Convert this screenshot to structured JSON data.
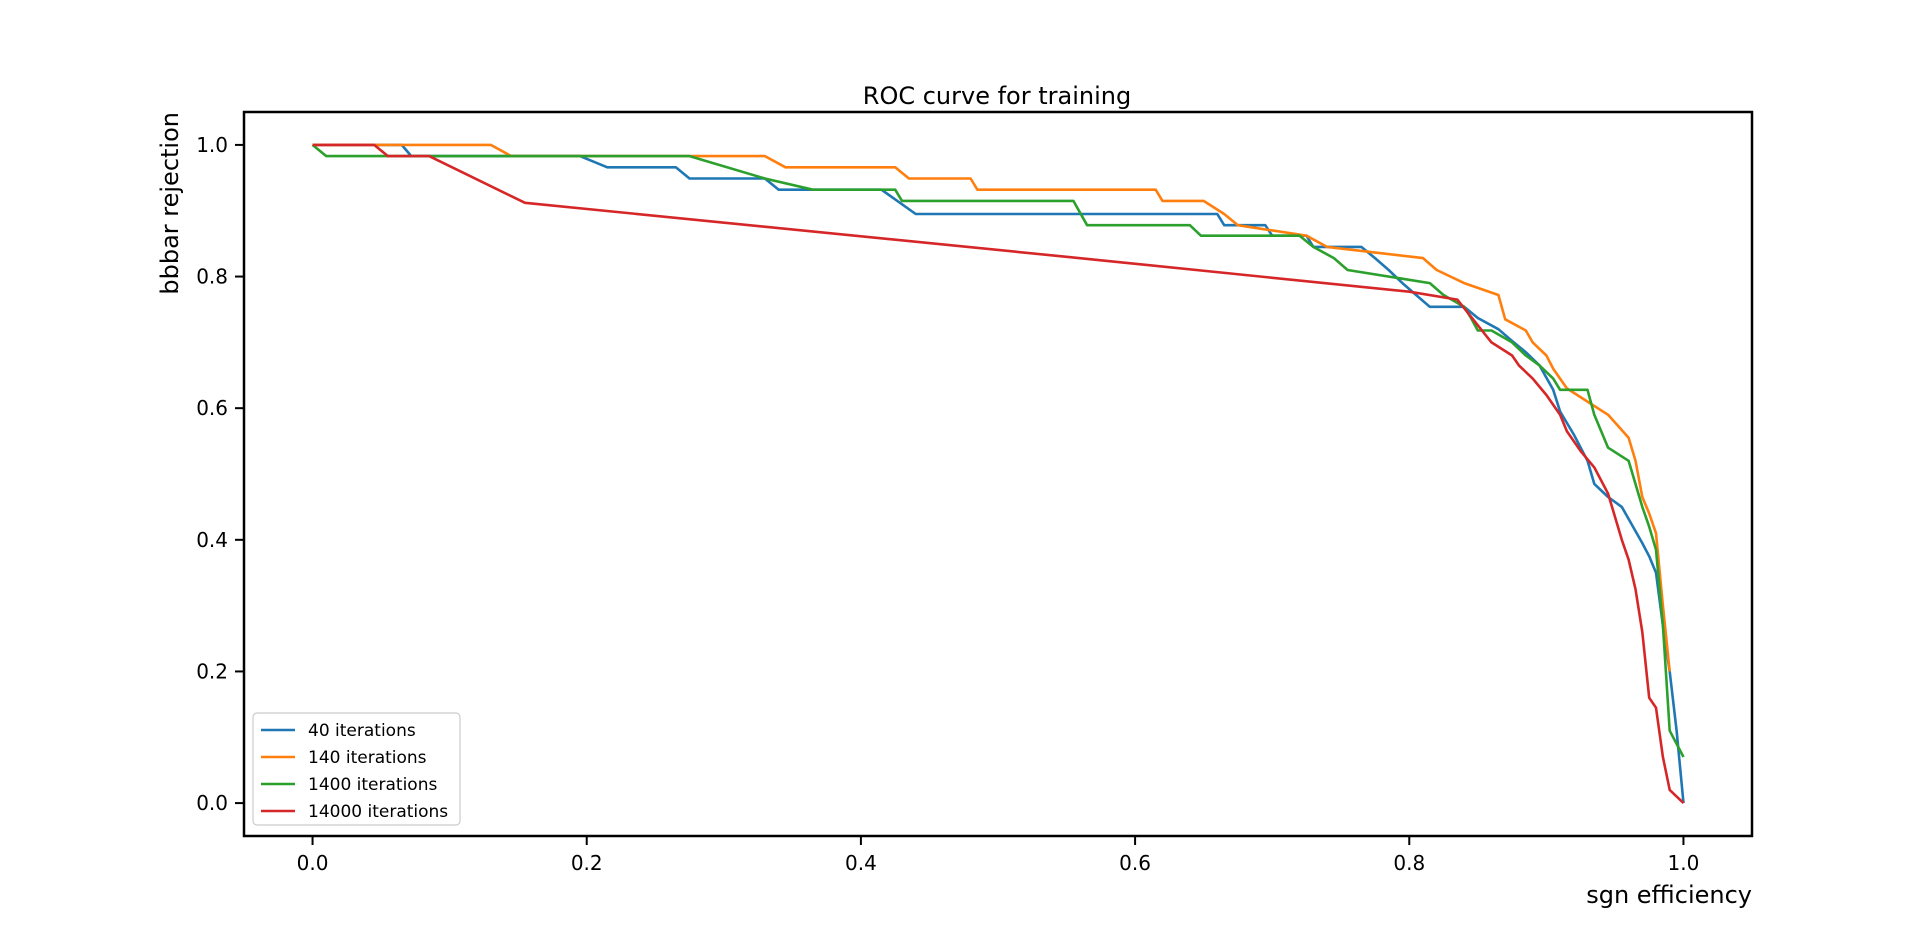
{
  "chart_data": {
    "type": "line",
    "title": "ROC curve for training",
    "xlabel": "sgn efficiency",
    "ylabel": "bbbar rejection",
    "xlim": [
      -0.05,
      1.05
    ],
    "ylim": [
      -0.05,
      1.05
    ],
    "xticks": [
      0.0,
      0.2,
      0.4,
      0.6,
      0.8,
      1.0
    ],
    "yticks": [
      0.0,
      0.2,
      0.4,
      0.6,
      0.8,
      1.0
    ],
    "xtick_labels": [
      "0.0",
      "0.2",
      "0.4",
      "0.6",
      "0.8",
      "1.0"
    ],
    "ytick_labels": [
      "0.0",
      "0.2",
      "0.4",
      "0.6",
      "0.8",
      "1.0"
    ],
    "grid": false,
    "legend_position": "lower-left",
    "series": [
      {
        "name": "40 iterations",
        "color": "#1f77b4",
        "x": [
          0.0,
          0.065,
          0.072,
          0.195,
          0.215,
          0.265,
          0.275,
          0.33,
          0.34,
          0.415,
          0.44,
          0.66,
          0.665,
          0.695,
          0.7,
          0.725,
          0.73,
          0.765,
          0.775,
          0.785,
          0.795,
          0.805,
          0.815,
          0.84,
          0.85,
          0.865,
          0.875,
          0.885,
          0.895,
          0.905,
          0.91,
          0.92,
          0.93,
          0.935,
          0.945,
          0.955,
          0.97,
          0.975,
          0.98,
          0.985,
          0.99,
          0.995,
          1.0
        ],
        "y": [
          1.0,
          1.0,
          0.983,
          0.983,
          0.966,
          0.966,
          0.949,
          0.949,
          0.932,
          0.932,
          0.895,
          0.895,
          0.878,
          0.878,
          0.862,
          0.862,
          0.845,
          0.845,
          0.828,
          0.81,
          0.79,
          0.772,
          0.754,
          0.754,
          0.737,
          0.72,
          0.702,
          0.685,
          0.665,
          0.628,
          0.595,
          0.56,
          0.52,
          0.485,
          0.465,
          0.45,
          0.395,
          0.375,
          0.35,
          0.27,
          0.2,
          0.11,
          0.0
        ]
      },
      {
        "name": "140 iterations",
        "color": "#ff7f0e",
        "x": [
          0.0,
          0.13,
          0.145,
          0.33,
          0.345,
          0.425,
          0.435,
          0.48,
          0.485,
          0.615,
          0.62,
          0.65,
          0.665,
          0.675,
          0.725,
          0.74,
          0.81,
          0.82,
          0.84,
          0.865,
          0.87,
          0.885,
          0.89,
          0.9,
          0.905,
          0.915,
          0.93,
          0.945,
          0.96,
          0.965,
          0.97,
          0.975,
          0.98,
          0.985,
          0.99
        ],
        "y": [
          1.0,
          1.0,
          0.983,
          0.983,
          0.966,
          0.966,
          0.949,
          0.949,
          0.932,
          0.932,
          0.915,
          0.915,
          0.895,
          0.878,
          0.862,
          0.845,
          0.828,
          0.81,
          0.79,
          0.772,
          0.735,
          0.718,
          0.7,
          0.68,
          0.66,
          0.63,
          0.61,
          0.59,
          0.555,
          0.52,
          0.465,
          0.44,
          0.41,
          0.3,
          0.2
        ]
      },
      {
        "name": "1400 iterations",
        "color": "#2ca02c",
        "x": [
          0.0,
          0.01,
          0.275,
          0.33,
          0.365,
          0.425,
          0.43,
          0.555,
          0.565,
          0.64,
          0.648,
          0.72,
          0.73,
          0.745,
          0.755,
          0.815,
          0.825,
          0.84,
          0.845,
          0.85,
          0.86,
          0.875,
          0.885,
          0.895,
          0.905,
          0.91,
          0.93,
          0.935,
          0.945,
          0.96,
          0.97,
          0.975,
          0.98,
          0.985,
          0.99,
          1.0
        ],
        "y": [
          1.0,
          0.983,
          0.983,
          0.949,
          0.932,
          0.932,
          0.915,
          0.915,
          0.878,
          0.878,
          0.862,
          0.862,
          0.845,
          0.828,
          0.81,
          0.79,
          0.772,
          0.754,
          0.737,
          0.718,
          0.718,
          0.7,
          0.68,
          0.665,
          0.645,
          0.628,
          0.628,
          0.59,
          0.54,
          0.52,
          0.45,
          0.42,
          0.385,
          0.27,
          0.11,
          0.07
        ]
      },
      {
        "name": "14000 iterations",
        "color": "#d62728",
        "x": [
          0.0,
          0.045,
          0.055,
          0.085,
          0.155,
          0.55,
          0.8,
          0.835,
          0.86,
          0.875,
          0.88,
          0.89,
          0.9,
          0.91,
          0.915,
          0.925,
          0.935,
          0.945,
          0.955,
          0.96,
          0.965,
          0.97,
          0.975,
          0.98,
          0.985,
          0.99,
          1.0
        ],
        "y": [
          1.0,
          1.0,
          0.983,
          0.983,
          0.912,
          0.83,
          0.777,
          0.765,
          0.7,
          0.68,
          0.665,
          0.645,
          0.62,
          0.59,
          0.565,
          0.535,
          0.51,
          0.47,
          0.4,
          0.37,
          0.325,
          0.26,
          0.16,
          0.145,
          0.07,
          0.02,
          0.0
        ]
      }
    ]
  }
}
